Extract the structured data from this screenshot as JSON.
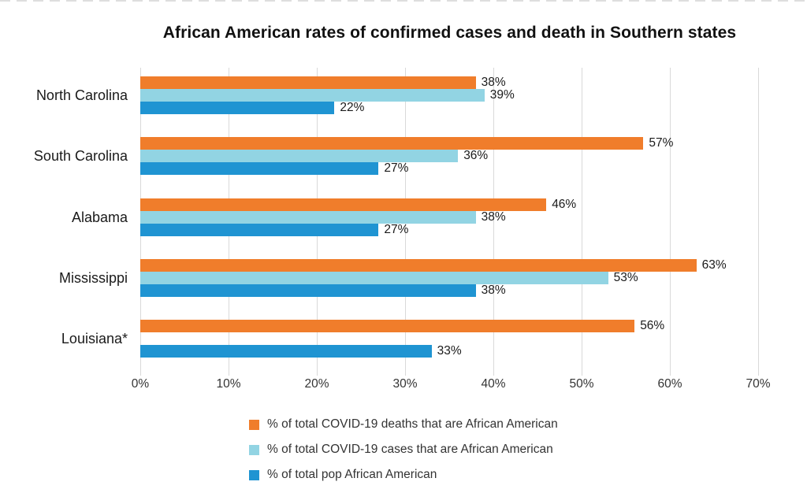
{
  "page": {
    "background": "#ffffff"
  },
  "chart_data": {
    "type": "bar",
    "orientation": "horizontal",
    "title": "African American rates of confirmed cases and death in Southern states",
    "categories": [
      "North Carolina",
      "South Carolina",
      "Alabama",
      "Mississippi",
      "Louisiana*"
    ],
    "series": [
      {
        "name": "% of total COVID-19 deaths that are African American",
        "color": "#F07D2B",
        "values": [
          38,
          57,
          46,
          63,
          56
        ]
      },
      {
        "name": "% of total COVID-19 cases that are African American",
        "color": "#92D4E3",
        "values": [
          39,
          36,
          38,
          53,
          null
        ]
      },
      {
        "name": "% of total pop African American",
        "color": "#1F94D2",
        "values": [
          22,
          27,
          27,
          38,
          33
        ]
      }
    ],
    "x_tick_labels": [
      "0%",
      "10%",
      "20%",
      "30%",
      "40%",
      "50%",
      "60%",
      "70%"
    ],
    "xlim": [
      0,
      70
    ],
    "value_label_suffix": "%",
    "grid": "vertical",
    "gridline_color": "#d9d9d9",
    "legend_position": "bottom",
    "title_color": "#111111",
    "label_color": "#1a1a1a",
    "axis_text_color": "#333333"
  }
}
